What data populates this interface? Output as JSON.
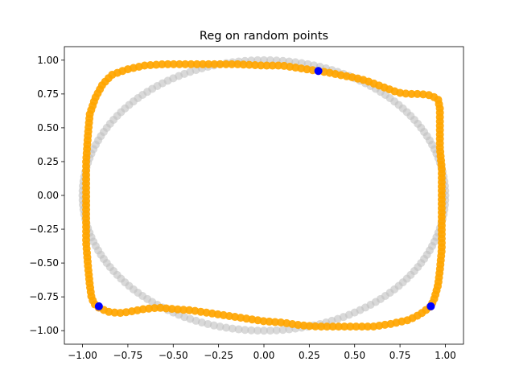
{
  "chart_data": {
    "type": "scatter",
    "title": "Reg on random points",
    "xlabel": "",
    "ylabel": "",
    "xlim": [
      -1.1,
      1.1
    ],
    "ylim": [
      -1.1,
      1.1
    ],
    "xticks": [
      -1.0,
      -0.75,
      -0.5,
      -0.25,
      0.0,
      0.25,
      0.5,
      0.75,
      1.0
    ],
    "yticks": [
      -1.0,
      -0.75,
      -0.5,
      -0.25,
      0.0,
      0.25,
      0.5,
      0.75,
      1.0
    ],
    "xtick_labels": [
      "−1.00",
      "−0.75",
      "−0.50",
      "−0.25",
      "0.00",
      "0.25",
      "0.50",
      "0.75",
      "1.00"
    ],
    "ytick_labels": [
      "−1.00",
      "−0.75",
      "−0.50",
      "−0.25",
      "0.00",
      "0.25",
      "0.50",
      "0.75",
      "1.00"
    ],
    "grid": false,
    "series": [
      {
        "color": "#bfbfbf",
        "shape": "unit circle",
        "points": 180
      },
      {
        "color": "#ffa500",
        "shape": "regularized closed curve",
        "path": [
          [
            0.3,
            0.92
          ],
          [
            0.35,
            0.91
          ],
          [
            0.42,
            0.89
          ],
          [
            0.5,
            0.87
          ],
          [
            0.56,
            0.85
          ],
          [
            0.62,
            0.82
          ],
          [
            0.68,
            0.79
          ],
          [
            0.74,
            0.76
          ],
          [
            0.8,
            0.75
          ],
          [
            0.86,
            0.75
          ],
          [
            0.92,
            0.74
          ],
          [
            0.96,
            0.71
          ],
          [
            0.97,
            0.64
          ],
          [
            0.97,
            0.5
          ],
          [
            0.97,
            0.35
          ],
          [
            0.98,
            0.2
          ],
          [
            0.98,
            0.0
          ],
          [
            0.98,
            -0.2
          ],
          [
            0.98,
            -0.4
          ],
          [
            0.97,
            -0.55
          ],
          [
            0.96,
            -0.66
          ],
          [
            0.94,
            -0.76
          ],
          [
            0.92,
            -0.82
          ],
          [
            0.86,
            -0.88
          ],
          [
            0.8,
            -0.92
          ],
          [
            0.7,
            -0.95
          ],
          [
            0.6,
            -0.97
          ],
          [
            0.45,
            -0.97
          ],
          [
            0.3,
            -0.97
          ],
          [
            0.2,
            -0.96
          ],
          [
            0.1,
            -0.94
          ],
          [
            0.0,
            -0.93
          ],
          [
            -0.1,
            -0.91
          ],
          [
            -0.2,
            -0.89
          ],
          [
            -0.3,
            -0.87
          ],
          [
            -0.4,
            -0.85
          ],
          [
            -0.5,
            -0.84
          ],
          [
            -0.58,
            -0.83
          ],
          [
            -0.66,
            -0.84
          ],
          [
            -0.74,
            -0.86
          ],
          [
            -0.8,
            -0.87
          ],
          [
            -0.86,
            -0.86
          ],
          [
            -0.91,
            -0.83
          ],
          [
            -0.93,
            -0.81
          ],
          [
            -0.95,
            -0.76
          ],
          [
            -0.96,
            -0.66
          ],
          [
            -0.97,
            -0.52
          ],
          [
            -0.98,
            -0.35
          ],
          [
            -0.98,
            -0.15
          ],
          [
            -0.98,
            0.05
          ],
          [
            -0.98,
            0.25
          ],
          [
            -0.97,
            0.45
          ],
          [
            -0.96,
            0.6
          ],
          [
            -0.93,
            0.72
          ],
          [
            -0.89,
            0.82
          ],
          [
            -0.84,
            0.89
          ],
          [
            -0.76,
            0.93
          ],
          [
            -0.66,
            0.96
          ],
          [
            -0.55,
            0.97
          ],
          [
            -0.44,
            0.97
          ],
          [
            -0.3,
            0.97
          ],
          [
            -0.15,
            0.97
          ],
          [
            0.0,
            0.96
          ],
          [
            0.1,
            0.96
          ],
          [
            0.2,
            0.94
          ],
          [
            0.3,
            0.92
          ]
        ],
        "points": 220
      },
      {
        "color": "#0000ff",
        "points_xy": [
          [
            0.3,
            0.92
          ],
          [
            0.92,
            -0.82
          ],
          [
            -0.91,
            -0.82
          ]
        ]
      }
    ]
  }
}
